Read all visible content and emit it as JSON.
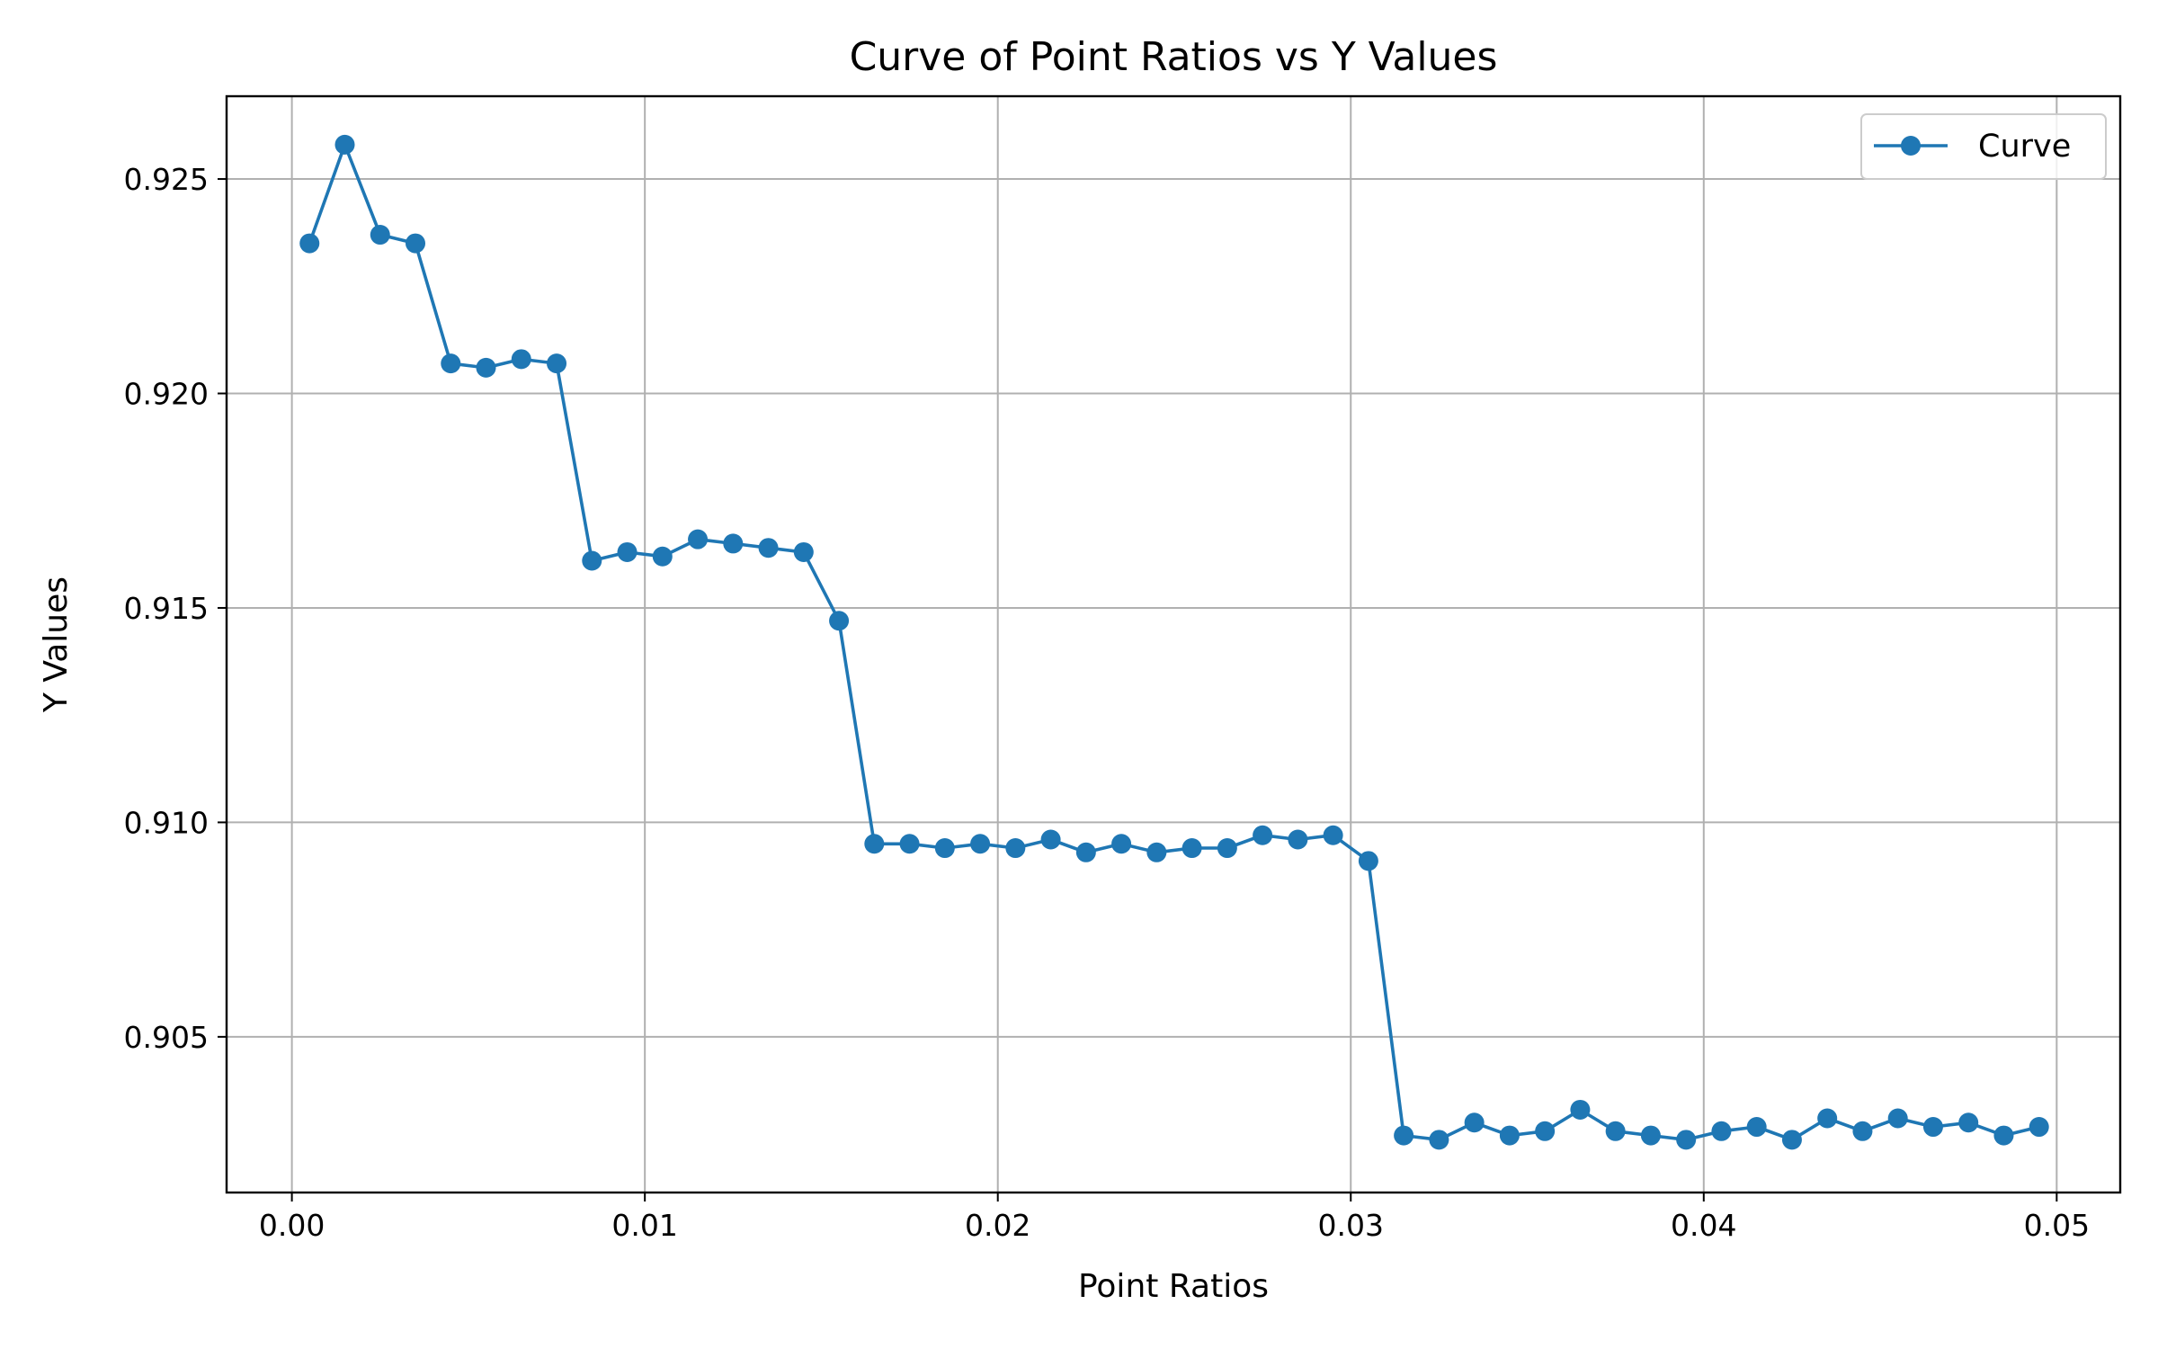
{
  "chart_data": {
    "type": "line",
    "title": "Curve of Point Ratios vs Y Values",
    "xlabel": "Point Ratios",
    "ylabel": "Y Values",
    "xlim": [
      -0.00185,
      0.0518
    ],
    "ylim": [
      0.90137,
      0.92693
    ],
    "xticks": [
      0.0,
      0.01,
      0.02,
      0.03,
      0.04,
      0.05
    ],
    "xtick_labels": [
      "0.00",
      "0.01",
      "0.02",
      "0.03",
      "0.04",
      "0.05"
    ],
    "yticks": [
      0.905,
      0.91,
      0.915,
      0.92,
      0.925
    ],
    "ytick_labels": [
      "0.905",
      "0.910",
      "0.915",
      "0.920",
      "0.925"
    ],
    "grid": true,
    "legend": {
      "position": "top-right",
      "entries": [
        "Curve"
      ]
    },
    "series": [
      {
        "name": "Curve",
        "color": "#1f77b4",
        "marker": "circle",
        "x": [
          0.0005,
          0.0015,
          0.0025,
          0.0035,
          0.0045,
          0.0055,
          0.0065,
          0.0075,
          0.0085,
          0.0095,
          0.0105,
          0.0115,
          0.0125,
          0.0135,
          0.0145,
          0.0155,
          0.0165,
          0.0175,
          0.0185,
          0.0195,
          0.0205,
          0.0215,
          0.0225,
          0.0235,
          0.0245,
          0.0255,
          0.0265,
          0.0275,
          0.0285,
          0.0295,
          0.0305,
          0.0315,
          0.0325,
          0.0335,
          0.0345,
          0.0355,
          0.0365,
          0.0375,
          0.0385,
          0.0395,
          0.0405,
          0.0415,
          0.0425,
          0.0435,
          0.0445,
          0.0455,
          0.0465,
          0.0475,
          0.0485,
          0.0495
        ],
        "y": [
          0.9235,
          0.9258,
          0.9237,
          0.9235,
          0.9207,
          0.9206,
          0.9208,
          0.9207,
          0.9161,
          0.9163,
          0.9162,
          0.9166,
          0.9165,
          0.9164,
          0.9163,
          0.9147,
          0.9095,
          0.9095,
          0.9094,
          0.9095,
          0.9094,
          0.9096,
          0.9093,
          0.9095,
          0.9093,
          0.9094,
          0.9094,
          0.9097,
          0.9096,
          0.9097,
          0.9091,
          0.9027,
          0.9026,
          0.903,
          0.9027,
          0.9028,
          0.9033,
          0.9028,
          0.9027,
          0.9026,
          0.9028,
          0.9029,
          0.9026,
          0.9031,
          0.9028,
          0.9031,
          0.9029,
          0.903,
          0.9027,
          0.9029
        ]
      }
    ]
  }
}
